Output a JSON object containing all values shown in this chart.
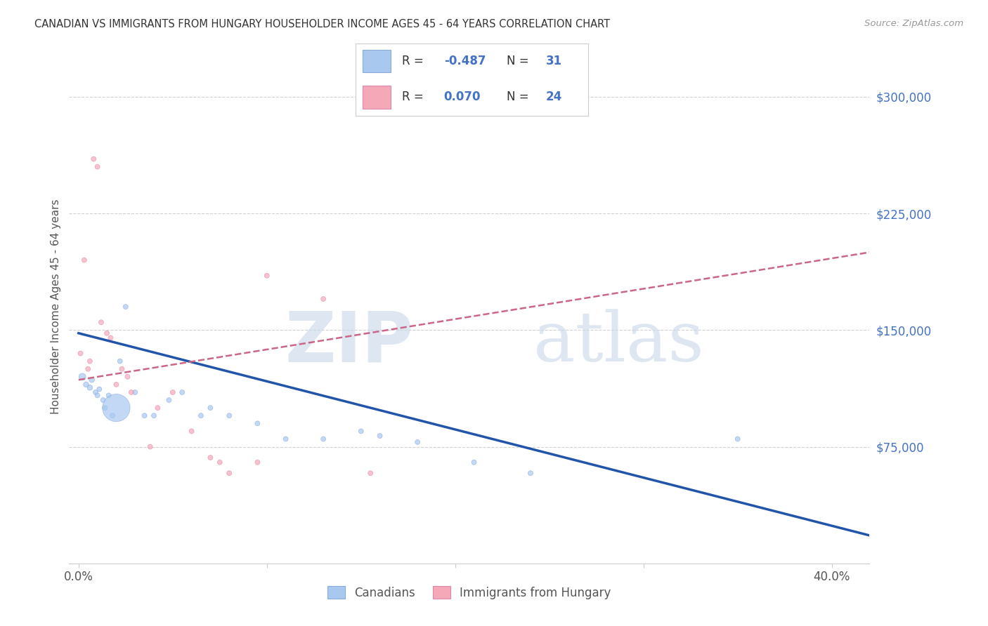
{
  "title": "CANADIAN VS IMMIGRANTS FROM HUNGARY HOUSEHOLDER INCOME AGES 45 - 64 YEARS CORRELATION CHART",
  "source": "Source: ZipAtlas.com",
  "ylabel": "Householder Income Ages 45 - 64 years",
  "xlim": [
    -0.005,
    0.42
  ],
  "ylim": [
    0,
    330000
  ],
  "yticks": [
    0,
    75000,
    150000,
    225000,
    300000
  ],
  "yticklabels": [
    "",
    "$75,000",
    "$150,000",
    "$225,000",
    "$300,000"
  ],
  "watermark_zip": "ZIP",
  "watermark_atlas": "atlas",
  "canadians_color": "#a8c8f0",
  "hungary_color": "#f5a8b8",
  "trend_blue_color": "#2255aa",
  "trend_pink_color": "#cc6688",
  "legend_r_blue": "-0.487",
  "legend_n_blue": "31",
  "legend_r_pink": "0.070",
  "legend_n_pink": "24",
  "canadians_x": [
    0.002,
    0.004,
    0.006,
    0.007,
    0.009,
    0.01,
    0.011,
    0.013,
    0.014,
    0.016,
    0.018,
    0.02,
    0.022,
    0.025,
    0.03,
    0.035,
    0.04,
    0.048,
    0.055,
    0.065,
    0.07,
    0.08,
    0.095,
    0.11,
    0.13,
    0.15,
    0.16,
    0.18,
    0.21,
    0.24,
    0.35
  ],
  "canadians_y": [
    120000,
    115000,
    113000,
    118000,
    110000,
    108000,
    112000,
    105000,
    100000,
    108000,
    95000,
    100000,
    130000,
    165000,
    110000,
    95000,
    95000,
    105000,
    110000,
    95000,
    100000,
    95000,
    90000,
    80000,
    80000,
    85000,
    82000,
    78000,
    65000,
    58000,
    80000
  ],
  "canadians_size": [
    50,
    30,
    30,
    30,
    25,
    25,
    25,
    25,
    25,
    25,
    25,
    800,
    25,
    25,
    25,
    25,
    25,
    25,
    25,
    25,
    25,
    25,
    25,
    25,
    25,
    25,
    25,
    25,
    25,
    25,
    25
  ],
  "hungary_x": [
    0.001,
    0.003,
    0.005,
    0.006,
    0.008,
    0.01,
    0.012,
    0.015,
    0.017,
    0.02,
    0.023,
    0.026,
    0.028,
    0.038,
    0.042,
    0.05,
    0.06,
    0.07,
    0.075,
    0.08,
    0.095,
    0.1,
    0.13,
    0.155
  ],
  "hungary_y": [
    135000,
    195000,
    125000,
    130000,
    260000,
    255000,
    155000,
    148000,
    145000,
    115000,
    125000,
    120000,
    110000,
    75000,
    100000,
    110000,
    85000,
    68000,
    65000,
    58000,
    65000,
    185000,
    170000,
    58000
  ],
  "hungary_size": [
    25,
    25,
    25,
    25,
    25,
    25,
    25,
    25,
    25,
    25,
    25,
    25,
    25,
    25,
    25,
    25,
    25,
    25,
    25,
    25,
    25,
    25,
    25,
    25
  ],
  "bg_color": "#ffffff",
  "grid_color": "#cccccc",
  "blue_trend_x0": 0.0,
  "blue_trend_y0": 148000,
  "blue_trend_x1": 0.42,
  "blue_trend_y1": 18000,
  "pink_trend_x0": 0.0,
  "pink_trend_y0": 118000,
  "pink_trend_x1": 0.42,
  "pink_trend_y1": 200000
}
